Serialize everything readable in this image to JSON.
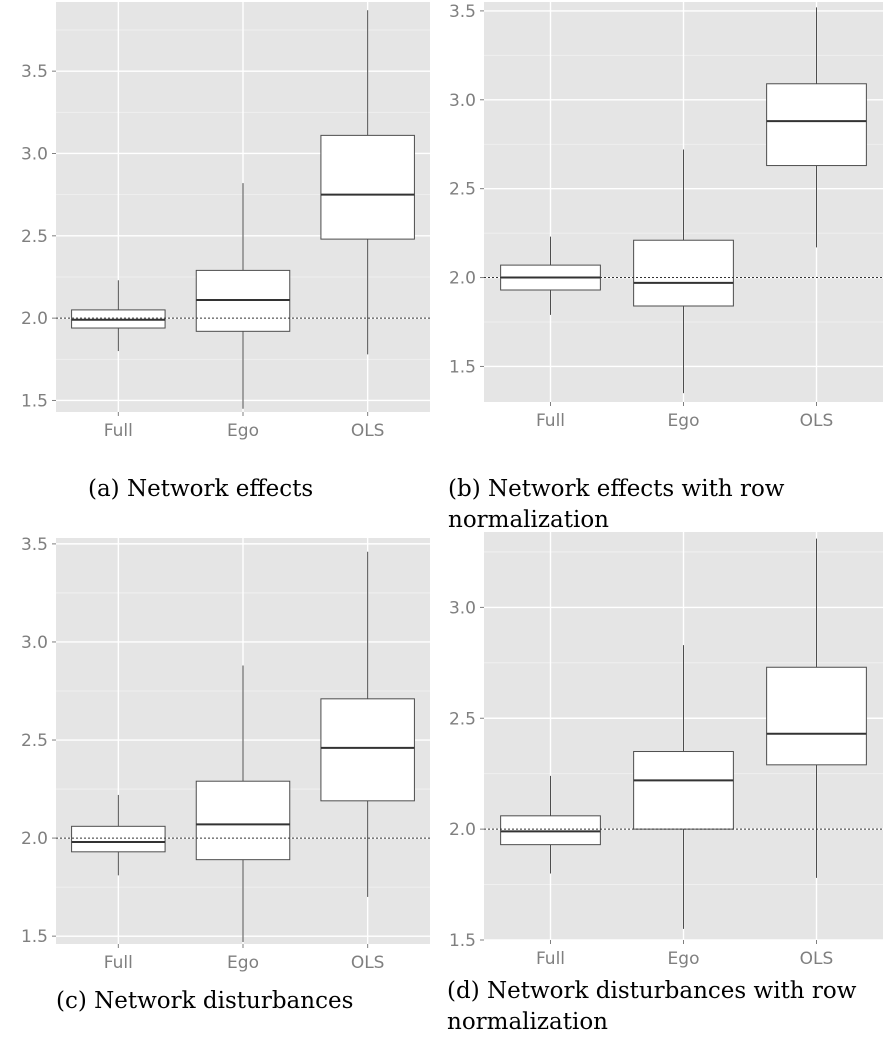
{
  "chart_data": [
    {
      "type": "box",
      "caption": "(a) Network effects",
      "categories": [
        "Full",
        "Ego",
        "OLS"
      ],
      "ylim": [
        1.43,
        3.92
      ],
      "yticks": [
        1.5,
        2.0,
        2.5,
        3.0,
        3.5
      ],
      "ytick_labels": [
        "1.5",
        "2.0",
        "2.5",
        "3.0",
        "3.5"
      ],
      "reference_line": 2.0,
      "boxes": [
        {
          "min": 1.8,
          "q1": 1.94,
          "median": 1.99,
          "q3": 2.05,
          "max": 2.23
        },
        {
          "min": 1.45,
          "q1": 1.92,
          "median": 2.11,
          "q3": 2.29,
          "max": 2.82
        },
        {
          "min": 1.78,
          "q1": 2.48,
          "median": 2.75,
          "q3": 3.11,
          "max": 3.87
        }
      ]
    },
    {
      "type": "box",
      "caption": "(b) Network effects with row normalization",
      "categories": [
        "Full",
        "Ego",
        "OLS"
      ],
      "ylim": [
        1.3,
        3.55
      ],
      "yticks": [
        1.5,
        2.0,
        2.5,
        3.0,
        3.5
      ],
      "ytick_labels": [
        "1.5",
        "2.0",
        "2.5",
        "3.0",
        "3.5"
      ],
      "reference_line": 2.0,
      "boxes": [
        {
          "min": 1.79,
          "q1": 1.93,
          "median": 2.0,
          "q3": 2.07,
          "max": 2.23
        },
        {
          "min": 1.35,
          "q1": 1.84,
          "median": 1.97,
          "q3": 2.21,
          "max": 2.72
        },
        {
          "min": 2.17,
          "q1": 2.63,
          "median": 2.88,
          "q3": 3.09,
          "max": 3.52
        }
      ]
    },
    {
      "type": "box",
      "caption": "(c) Network disturbances",
      "categories": [
        "Full",
        "Ego",
        "OLS"
      ],
      "ylim": [
        1.46,
        3.53
      ],
      "yticks": [
        1.5,
        2.0,
        2.5,
        3.0,
        3.5
      ],
      "ytick_labels": [
        "1.5",
        "2.0",
        "2.5",
        "3.0",
        "3.5"
      ],
      "reference_line": 2.0,
      "boxes": [
        {
          "min": 1.81,
          "q1": 1.93,
          "median": 1.98,
          "q3": 2.06,
          "max": 2.22
        },
        {
          "min": 1.47,
          "q1": 1.89,
          "median": 2.07,
          "q3": 2.29,
          "max": 2.88
        },
        {
          "min": 1.7,
          "q1": 2.19,
          "median": 2.46,
          "q3": 2.71,
          "max": 3.46
        }
      ]
    },
    {
      "type": "box",
      "caption": "(d) Network disturbances with row normalization",
      "categories": [
        "Full",
        "Ego",
        "OLS"
      ],
      "ylim": [
        1.5,
        3.34
      ],
      "yticks": [
        1.5,
        2.0,
        2.5,
        3.0
      ],
      "ytick_labels": [
        "1.5",
        "2.0",
        "2.5",
        "3.0"
      ],
      "reference_line": 2.0,
      "boxes": [
        {
          "min": 1.8,
          "q1": 1.93,
          "median": 1.99,
          "q3": 2.06,
          "max": 2.24
        },
        {
          "min": 1.55,
          "q1": 2.0,
          "median": 2.22,
          "q3": 2.35,
          "max": 2.83
        },
        {
          "min": 1.78,
          "q1": 2.29,
          "median": 2.43,
          "q3": 2.73,
          "max": 3.31
        }
      ]
    }
  ]
}
